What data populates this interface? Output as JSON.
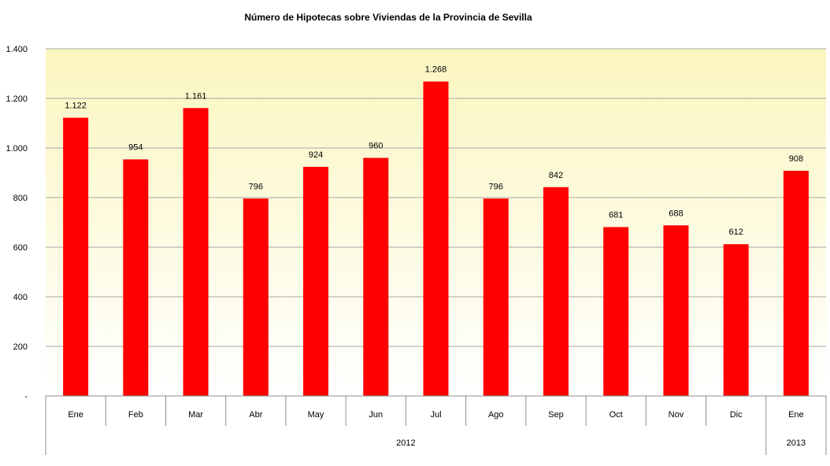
{
  "chart_data": {
    "type": "bar",
    "title": "Número de Hipotecas sobre Viviendas de la Provincia de Sevilla",
    "xlabel": "",
    "ylabel": "",
    "ylim": [
      0,
      1400
    ],
    "y_ticks": [
      {
        "value": 0,
        "label": "-"
      },
      {
        "value": 200,
        "label": "200"
      },
      {
        "value": 400,
        "label": "400"
      },
      {
        "value": 600,
        "label": "600"
      },
      {
        "value": 800,
        "label": "800"
      },
      {
        "value": 1000,
        "label": "1.000"
      },
      {
        "value": 1200,
        "label": "1.200"
      },
      {
        "value": 1400,
        "label": "1.400"
      }
    ],
    "categories": [
      "Ene",
      "Feb",
      "Mar",
      "Abr",
      "May",
      "Jun",
      "Jul",
      "Ago",
      "Sep",
      "Oct",
      "Nov",
      "Dic",
      "Ene"
    ],
    "groups": [
      {
        "label": "2012",
        "count": 12
      },
      {
        "label": "2013",
        "count": 1
      }
    ],
    "values": [
      1122,
      954,
      1161,
      796,
      924,
      960,
      1268,
      796,
      842,
      681,
      688,
      612,
      908
    ],
    "value_labels": [
      "1.122",
      "954",
      "1.161",
      "796",
      "924",
      "960",
      "1.268",
      "796",
      "842",
      "681",
      "688",
      "612",
      "908"
    ],
    "grid": true,
    "legend": "none",
    "colors": {
      "bar": "#ff0000",
      "gridline": "#a6a6a6",
      "background_top": "#fbf6bf",
      "background_bottom": "#ffffff"
    }
  }
}
